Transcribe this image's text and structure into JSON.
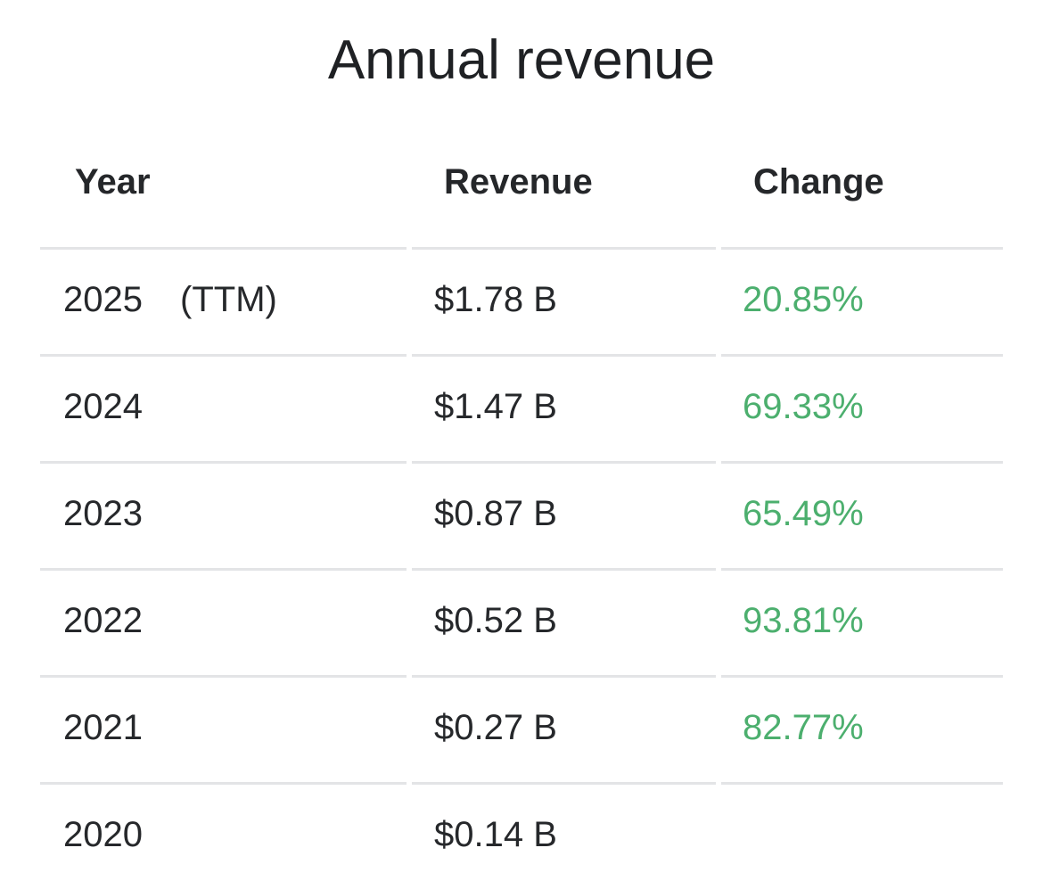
{
  "title": "Annual revenue",
  "columns": {
    "year": "Year",
    "revenue": "Revenue",
    "change": "Change"
  },
  "rows": [
    {
      "year": "2025",
      "note": "(TTM)",
      "revenue": "$1.78 B",
      "change": "20.85%"
    },
    {
      "year": "2024",
      "note": "",
      "revenue": "$1.47 B",
      "change": "69.33%"
    },
    {
      "year": "2023",
      "note": "",
      "revenue": "$0.87 B",
      "change": "65.49%"
    },
    {
      "year": "2022",
      "note": "",
      "revenue": "$0.52 B",
      "change": "93.81%"
    },
    {
      "year": "2021",
      "note": "",
      "revenue": "$0.27 B",
      "change": "82.77%"
    },
    {
      "year": "2020",
      "note": "",
      "revenue": "$0.14 B",
      "change": ""
    }
  ],
  "colors": {
    "positive_change": "#4caf6e",
    "text": "#222426",
    "rule": "#e3e4e6"
  }
}
